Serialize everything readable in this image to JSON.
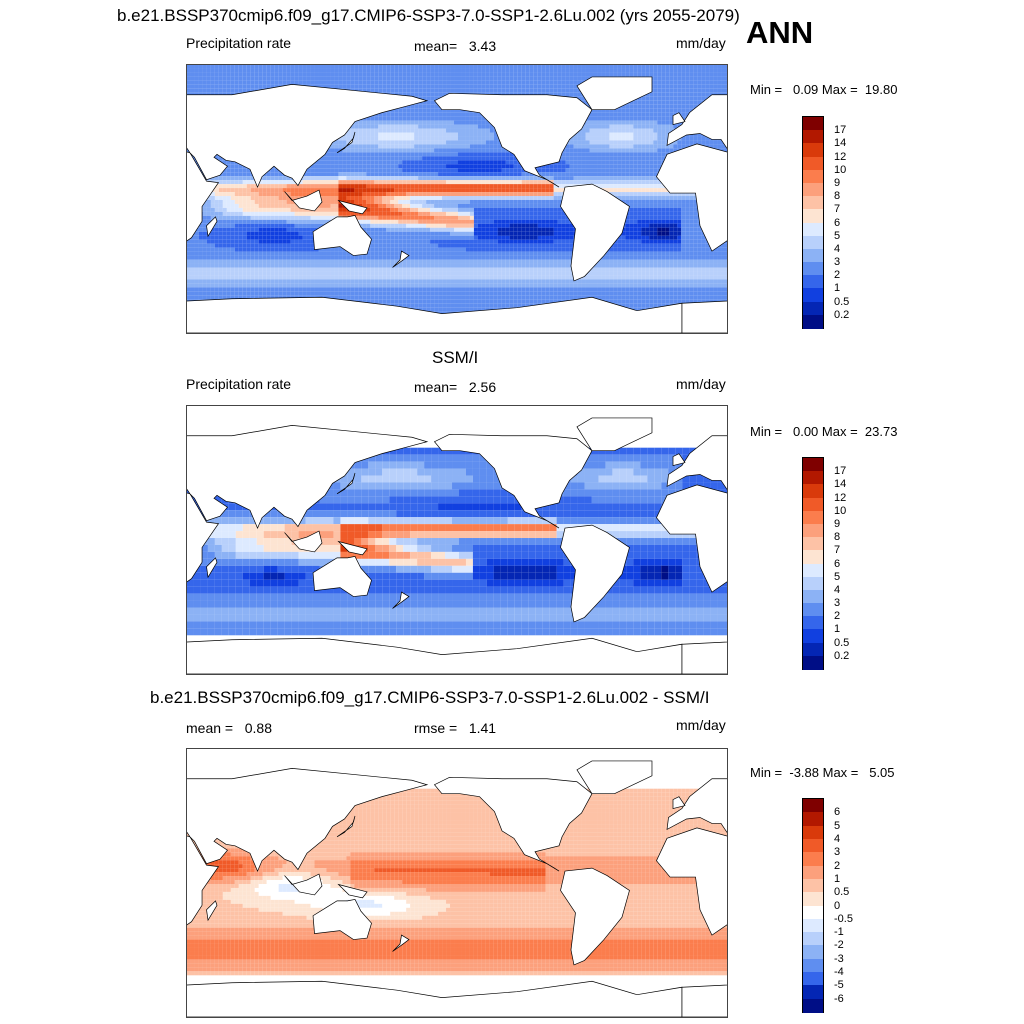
{
  "header": {
    "top_title": "b.e21.BSSP370cmip6.f09_g17.CMIP6-SSP3-7.0-SSP1-2.6Lu.002 (yrs 2055-2079)",
    "season": "ANN"
  },
  "panels": [
    {
      "title": "",
      "left_label": "Precipitation rate",
      "center_label": "mean=   3.43",
      "units": "mm/day",
      "minmax": "Min =   0.09 Max =  19.80",
      "kind": "model",
      "colorbar": {
        "levels": [
          "17",
          "14",
          "12",
          "10",
          "9",
          "8",
          "7",
          "6",
          "5",
          "4",
          "3",
          "2",
          "1",
          "0.5",
          "0.2"
        ],
        "colors": [
          "#7f0000",
          "#b21800",
          "#d93a0b",
          "#f05a28",
          "#fb7d4d",
          "#fca07c",
          "#fdc2a6",
          "#fde4d2",
          "#ddeaff",
          "#b8d0fb",
          "#8cb2f5",
          "#5f8ef0",
          "#3566eb",
          "#1140e0",
          "#0426b4",
          "#000e86"
        ]
      }
    },
    {
      "title": "SSM/I",
      "left_label": "Precipitation rate",
      "center_label": "mean=   2.56",
      "units": "mm/day",
      "minmax": "Min =   0.00 Max =  23.73",
      "kind": "obs",
      "colorbar": {
        "levels": [
          "17",
          "14",
          "12",
          "10",
          "9",
          "8",
          "7",
          "6",
          "5",
          "4",
          "3",
          "2",
          "1",
          "0.5",
          "0.2"
        ],
        "colors": [
          "#7f0000",
          "#b21800",
          "#d93a0b",
          "#f05a28",
          "#fb7d4d",
          "#fca07c",
          "#fdc2a6",
          "#fde4d2",
          "#ddeaff",
          "#b8d0fb",
          "#8cb2f5",
          "#5f8ef0",
          "#3566eb",
          "#1140e0",
          "#0426b4",
          "#000e86"
        ]
      }
    },
    {
      "title": "b.e21.BSSP370cmip6.f09_g17.CMIP6-SSP3-7.0-SSP1-2.6Lu.002 - SSM/I",
      "left_label": "mean =   0.88",
      "center_label": "rmse =   1.41",
      "units": "mm/day",
      "minmax": "Min =  -3.88 Max =   5.05",
      "kind": "diff",
      "colorbar": {
        "levels": [
          "6",
          "5",
          "4",
          "3",
          "2",
          "1",
          "0.5",
          "0",
          "-0.5",
          "-1",
          "-2",
          "-3",
          "-4",
          "-5",
          "-6"
        ],
        "colors": [
          "#7f0000",
          "#b21800",
          "#d93a0b",
          "#f05a28",
          "#fb7d4d",
          "#fca07c",
          "#fdc2a6",
          "#fde4d2",
          "#ffffff",
          "#ddeaff",
          "#b8d0fb",
          "#8cb2f5",
          "#5f8ef0",
          "#3566eb",
          "#0426b4",
          "#000e86"
        ]
      }
    }
  ]
}
